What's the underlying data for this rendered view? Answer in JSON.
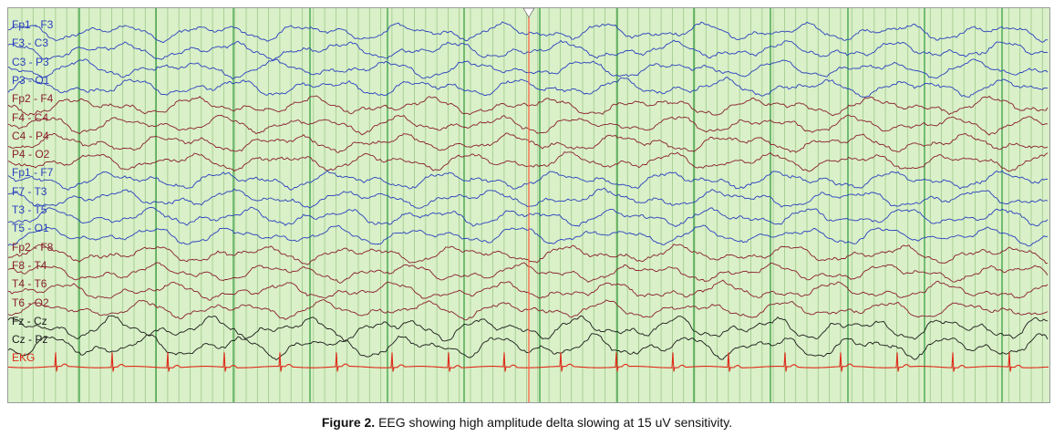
{
  "caption": {
    "label": "Figure 2.",
    "text": "EEG showing high amplitude delta slowing at 15 uV sensitivity."
  },
  "colors": {
    "background": "#d9f0c8",
    "fine_grid": "#9fc98a",
    "major_grid": "#2f9a3a",
    "cursor": "#ff5a3c",
    "left_hemisphere": "#2a3fbf",
    "right_hemisphere": "#8a1e2e",
    "midline": "#1a1a1a",
    "ekg": "#e02a1a"
  },
  "chart_data": {
    "type": "line",
    "sensitivity_uV": 15,
    "channels": [
      {
        "name": "Fp1 - F3",
        "group": "left"
      },
      {
        "name": "F3 - C3",
        "group": "left"
      },
      {
        "name": "C3 - P3",
        "group": "left"
      },
      {
        "name": "P3 - O1",
        "group": "left"
      },
      {
        "name": "Fp2 - F4",
        "group": "right"
      },
      {
        "name": "F4 - C4",
        "group": "right"
      },
      {
        "name": "C4 - P4",
        "group": "right"
      },
      {
        "name": "P4 - O2",
        "group": "right"
      },
      {
        "name": "Fp1 - F7",
        "group": "left"
      },
      {
        "name": "F7 - T3",
        "group": "left"
      },
      {
        "name": "T3 - T5",
        "group": "left"
      },
      {
        "name": "T5 - O1",
        "group": "left"
      },
      {
        "name": "Fp2 - F8",
        "group": "right"
      },
      {
        "name": "F8 - T4",
        "group": "right"
      },
      {
        "name": "T4 - T6",
        "group": "right"
      },
      {
        "name": "T6 - O2",
        "group": "right"
      },
      {
        "name": "Fz - Cz",
        "group": "midline"
      },
      {
        "name": "Cz - Pz",
        "group": "midline"
      },
      {
        "name": "EKG",
        "group": "ekg"
      }
    ]
  }
}
